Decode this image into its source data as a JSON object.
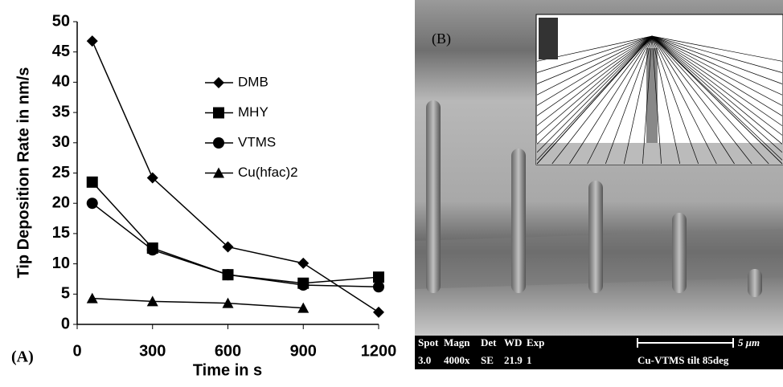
{
  "chart_data": {
    "type": "line",
    "panel_label": "(A)",
    "xlabel": "Time in s",
    "ylabel": "Tip Deposition Rate in nm/s",
    "x": [
      60,
      300,
      600,
      900,
      1200
    ],
    "xlim": [
      0,
      1200
    ],
    "xticks": [
      0,
      300,
      600,
      900,
      1200
    ],
    "ylim": [
      0,
      50
    ],
    "yticks": [
      0,
      5,
      10,
      15,
      20,
      25,
      30,
      35,
      40,
      45,
      50
    ],
    "series": [
      {
        "name": "DMB",
        "color": "#000000",
        "marker": "diamond",
        "values": [
          46.8,
          24.2,
          12.8,
          10.1,
          2
        ]
      },
      {
        "name": "MHY",
        "color": "#000000",
        "marker": "square",
        "values": [
          23.5,
          12.6,
          8.2,
          6.8,
          7.8
        ]
      },
      {
        "name": "VTMS",
        "color": "#000000",
        "marker": "circle",
        "values": [
          20,
          12.3,
          8.2,
          6.5,
          6.2
        ]
      },
      {
        "name": "Cu(hfac)2",
        "color": "#000000",
        "marker": "triangle",
        "values": [
          4.3,
          3.8,
          3.5,
          2.7,
          null
        ]
      }
    ]
  },
  "image_panel": {
    "label": "(B)",
    "info_header": [
      "Spot",
      "Magn",
      "Det",
      "WD",
      "Exp"
    ],
    "info_values": [
      "3.0",
      "4000x",
      "SE",
      "21.9",
      "1"
    ],
    "scale": "5 μm",
    "caption": "Cu-VTMS tilt 85deg"
  }
}
